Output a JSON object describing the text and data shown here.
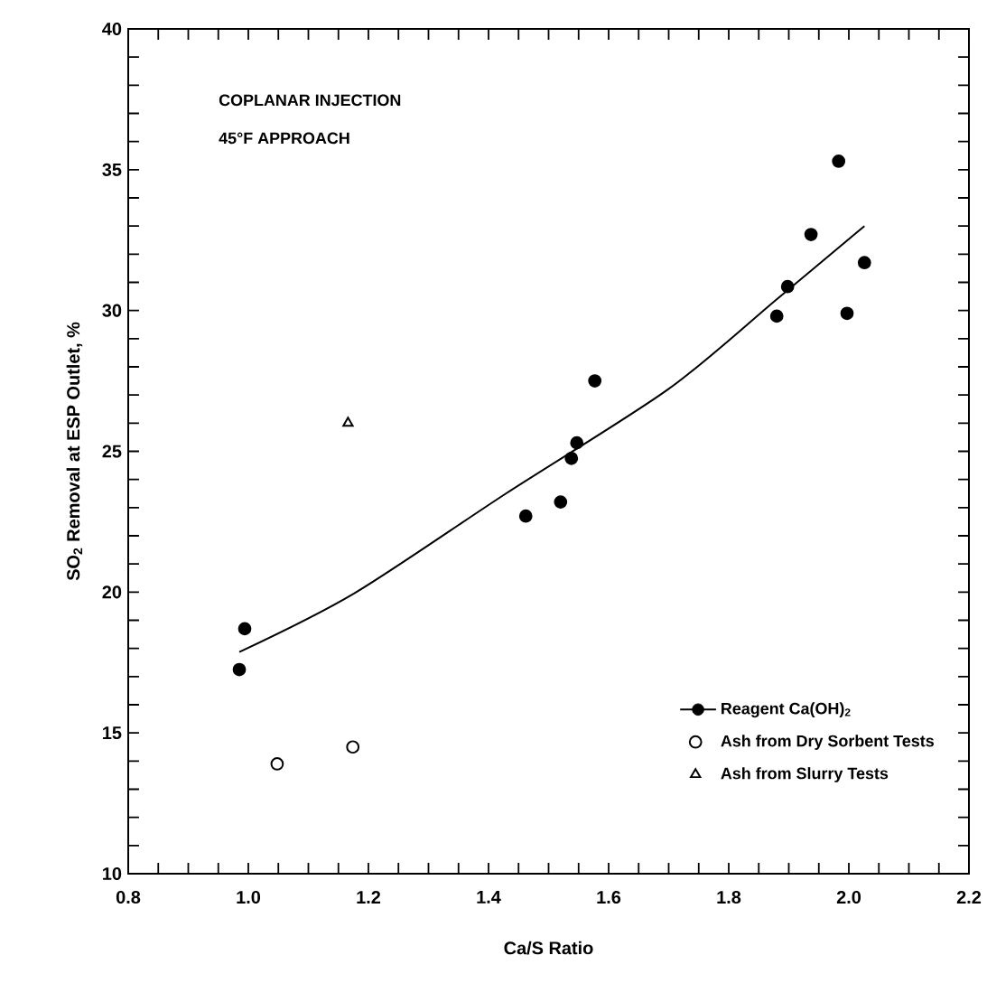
{
  "chart_data": {
    "type": "scatter",
    "xlabel": "Ca/S Ratio",
    "ylabel": "SO$_{2}$ Removal at ESP Outlet, %",
    "annotations": [
      "COPLANAR INJECTION",
      "45°F APPROACH"
    ],
    "xlim": [
      0.8,
      2.2
    ],
    "ylim": [
      10,
      40
    ],
    "xticks": [
      0.8,
      {
        "value": 0.85,
        "label": null
      },
      {
        "value": 0.9,
        "label": null
      },
      {
        "value": 0.95,
        "label": null
      },
      {
        "value": 1.0,
        "label": "1.0"
      },
      {
        "value": 1.05,
        "label": null
      },
      {
        "value": 1.1,
        "label": null
      },
      {
        "value": 1.15,
        "label": null
      },
      1.2,
      {
        "value": 1.25,
        "label": null
      },
      {
        "value": 1.3,
        "label": null
      },
      {
        "value": 1.35,
        "label": null
      },
      1.4,
      {
        "value": 1.45,
        "label": null
      },
      {
        "value": 1.5,
        "label": null
      },
      {
        "value": 1.55,
        "label": null
      },
      1.6,
      {
        "value": 1.65,
        "label": null
      },
      {
        "value": 1.7,
        "label": null
      },
      {
        "value": 1.75,
        "label": null
      },
      1.8,
      {
        "value": 1.85,
        "label": null
      },
      {
        "value": 1.9,
        "label": null
      },
      {
        "value": 1.95,
        "label": null
      },
      {
        "value": 2.0,
        "label": "2.0"
      },
      {
        "value": 2.05,
        "label": null
      },
      {
        "value": 2.1,
        "label": null
      },
      {
        "value": 2.15,
        "label": null
      },
      2.2
    ],
    "yticks": [
      10,
      {
        "value": 11,
        "label": null
      },
      {
        "value": 12,
        "label": null
      },
      {
        "value": 13,
        "label": null
      },
      {
        "value": 14,
        "label": null
      },
      15,
      {
        "value": 16,
        "label": null
      },
      {
        "value": 17,
        "label": null
      },
      {
        "value": 18,
        "label": null
      },
      {
        "value": 19,
        "label": null
      },
      20,
      {
        "value": 21,
        "label": null
      },
      {
        "value": 22,
        "label": null
      },
      {
        "value": 23,
        "label": null
      },
      {
        "value": 24,
        "label": null
      },
      25,
      {
        "value": 26,
        "label": null
      },
      {
        "value": 27,
        "label": null
      },
      {
        "value": 28,
        "label": null
      },
      {
        "value": 29,
        "label": null
      },
      30,
      {
        "value": 31,
        "label": null
      },
      {
        "value": 32,
        "label": null
      },
      {
        "value": 33,
        "label": null
      },
      {
        "value": 34,
        "label": null
      },
      35,
      {
        "value": 36,
        "label": null
      },
      {
        "value": 37,
        "label": null
      },
      {
        "value": 38,
        "label": null
      },
      {
        "value": 39,
        "label": null
      },
      40
    ],
    "legend": "bottom right",
    "grid": false,
    "series": [
      {
        "name": "Reagent Ca(OH)$_{2}$",
        "marker": "circle",
        "color": "#000000",
        "x": [
          0.985,
          0.994,
          1.462,
          1.52,
          1.538,
          1.547,
          1.577,
          1.88,
          1.898,
          1.937,
          1.983,
          1.997,
          2.026
        ],
        "values": [
          17.25,
          18.7,
          22.7,
          23.2,
          24.75,
          25.3,
          27.5,
          29.8,
          30.85,
          32.7,
          35.3,
          29.9,
          31.7
        ]
      },
      {
        "name": "Ash from Dry Sorbent Tests",
        "marker": "circle",
        "color": "#000000",
        "x": [
          1.048,
          1.174
        ],
        "values": [
          13.9,
          14.5
        ]
      },
      {
        "name": "Ash from Slurry Tests",
        "marker": "triangle",
        "color": "#000000",
        "x": [
          1.166
        ],
        "values": [
          26.0
        ]
      },
      {
        "type": "line",
        "color": "#000000",
        "line_style": "solid",
        "marker": "none",
        "x": [
          0.985,
          1.176,
          1.429,
          1.699,
          1.88,
          2.026
        ],
        "values": [
          17.87,
          19.95,
          23.5,
          27.2,
          30.4,
          33.0
        ]
      }
    ]
  }
}
